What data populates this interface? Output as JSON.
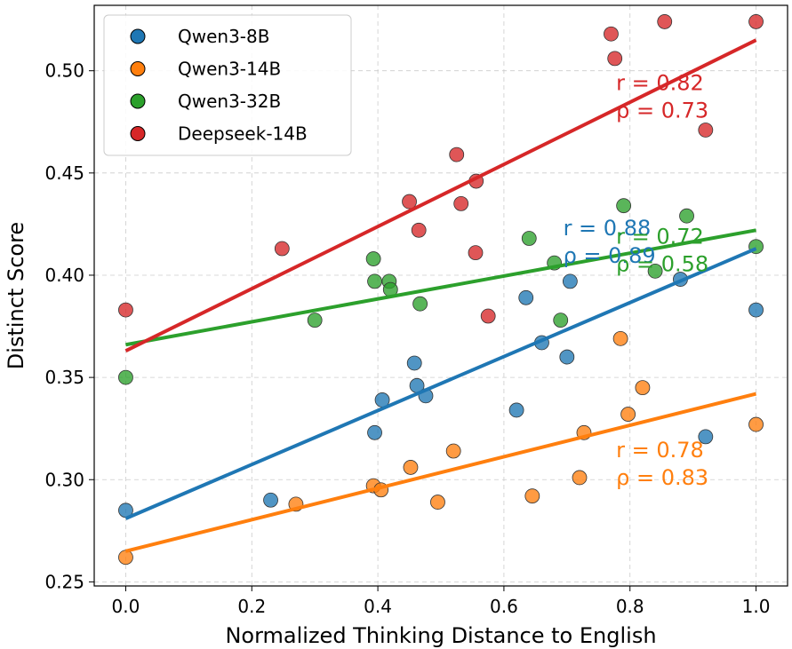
{
  "chart_data": {
    "type": "scatter",
    "title": "",
    "xlabel": "Normalized Thinking Distance to English",
    "ylabel": "Distinct Score",
    "xlim": [
      -0.05,
      1.05
    ],
    "ylim": [
      0.248,
      0.532
    ],
    "xticks": [
      0.0,
      0.2,
      0.4,
      0.6,
      0.8,
      1.0
    ],
    "xtick_labels": [
      "0.0",
      "0.2",
      "0.4",
      "0.6",
      "0.8",
      "1.0"
    ],
    "yticks": [
      0.25,
      0.3,
      0.35,
      0.4,
      0.45,
      0.5
    ],
    "ytick_labels": [
      "0.25",
      "0.30",
      "0.35",
      "0.40",
      "0.45",
      "0.50"
    ],
    "grid": true,
    "legend_position": "top-left",
    "series": [
      {
        "name": "Qwen3-8B",
        "color": "#1f77b4",
        "points": [
          [
            0.0,
            0.285
          ],
          [
            0.23,
            0.29
          ],
          [
            0.395,
            0.323
          ],
          [
            0.407,
            0.339
          ],
          [
            0.458,
            0.357
          ],
          [
            0.462,
            0.346
          ],
          [
            0.476,
            0.341
          ],
          [
            0.62,
            0.334
          ],
          [
            0.635,
            0.389
          ],
          [
            0.66,
            0.367
          ],
          [
            0.7,
            0.36
          ],
          [
            0.705,
            0.397
          ],
          [
            0.92,
            0.321
          ],
          [
            1.0,
            0.383
          ],
          [
            0.88,
            0.398
          ]
        ],
        "fit": [
          [
            0.0,
            0.281
          ],
          [
            1.0,
            0.413
          ]
        ],
        "r_label": "r = 0.88",
        "rho_label": "ρ = 0.89"
      },
      {
        "name": "Qwen3-14B",
        "color": "#ff7f0e",
        "points": [
          [
            0.0,
            0.262
          ],
          [
            0.27,
            0.288
          ],
          [
            0.393,
            0.297
          ],
          [
            0.405,
            0.295
          ],
          [
            0.452,
            0.306
          ],
          [
            0.495,
            0.289
          ],
          [
            0.52,
            0.314
          ],
          [
            0.645,
            0.292
          ],
          [
            0.72,
            0.301
          ],
          [
            0.727,
            0.323
          ],
          [
            0.785,
            0.369
          ],
          [
            0.797,
            0.332
          ],
          [
            0.82,
            0.345
          ],
          [
            1.0,
            0.327
          ]
        ],
        "fit": [
          [
            0.0,
            0.265
          ],
          [
            1.0,
            0.342
          ]
        ],
        "r_label": "r = 0.78",
        "rho_label": "ρ = 0.83"
      },
      {
        "name": "Qwen3-32B",
        "color": "#2ca02c",
        "points": [
          [
            0.0,
            0.35
          ],
          [
            0.3,
            0.378
          ],
          [
            0.393,
            0.408
          ],
          [
            0.395,
            0.397
          ],
          [
            0.418,
            0.397
          ],
          [
            0.42,
            0.393
          ],
          [
            0.467,
            0.386
          ],
          [
            0.64,
            0.418
          ],
          [
            0.68,
            0.406
          ],
          [
            0.69,
            0.378
          ],
          [
            0.79,
            0.434
          ],
          [
            0.84,
            0.402
          ],
          [
            0.89,
            0.429
          ],
          [
            1.0,
            0.414
          ]
        ],
        "fit": [
          [
            0.0,
            0.366
          ],
          [
            1.0,
            0.422
          ]
        ],
        "r_label": "r = 0.72",
        "rho_label": "ρ = 0.58"
      },
      {
        "name": "Deepseek-14B",
        "color": "#d62728",
        "points": [
          [
            0.0,
            0.383
          ],
          [
            0.248,
            0.413
          ],
          [
            0.45,
            0.436
          ],
          [
            0.465,
            0.422
          ],
          [
            0.525,
            0.459
          ],
          [
            0.532,
            0.435
          ],
          [
            0.555,
            0.411
          ],
          [
            0.556,
            0.446
          ],
          [
            0.575,
            0.38
          ],
          [
            0.77,
            0.518
          ],
          [
            0.776,
            0.506
          ],
          [
            0.855,
            0.524
          ],
          [
            0.92,
            0.471
          ],
          [
            1.0,
            0.524
          ]
        ],
        "fit": [
          [
            0.0,
            0.363
          ],
          [
            1.0,
            0.515
          ]
        ],
        "r_label": "r = 0.82",
        "rho_label": "ρ = 0.73"
      }
    ]
  }
}
